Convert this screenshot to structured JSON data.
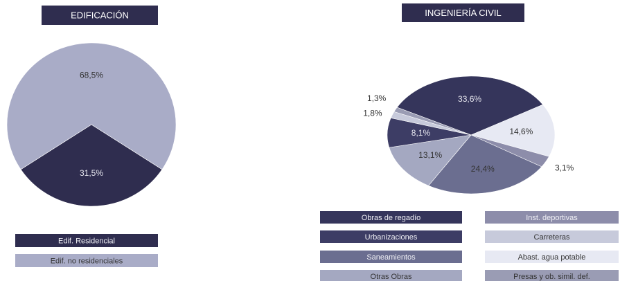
{
  "chart_data": [
    {
      "type": "pie",
      "title": "EDIFICACIÓN",
      "categories": [
        "Edif. Residencial",
        "Edif. no residenciales"
      ],
      "values": [
        31.5,
        68.5
      ],
      "value_labels": [
        "31,5%",
        "68,5%"
      ],
      "colors": [
        "#2f2d4f",
        "#a9acc7"
      ]
    },
    {
      "type": "pie",
      "title": "INGENIERÍA CIVIL",
      "categories": [
        "Obras de regadío",
        "Abast. agua potable",
        "Inst. deportivas",
        "Saneamientos",
        "Otras Obras",
        "Urbanizaciones",
        "Carreteras",
        "Presas y ob. simil. def."
      ],
      "values": [
        33.6,
        14.6,
        3.1,
        24.4,
        13.1,
        8.1,
        1.8,
        1.3
      ],
      "value_labels": [
        "33,6%",
        "14,6%",
        "3,1%",
        "24,4%",
        "13,1%",
        "8,1%",
        "1,8%",
        "1,3%"
      ],
      "colors": [
        "#35355b",
        "#e7e9f3",
        "#8d8daa",
        "#6b6e90",
        "#a4a8c1",
        "#3d3d65",
        "#c7cadb",
        "#9a9cb4"
      ]
    }
  ]
}
